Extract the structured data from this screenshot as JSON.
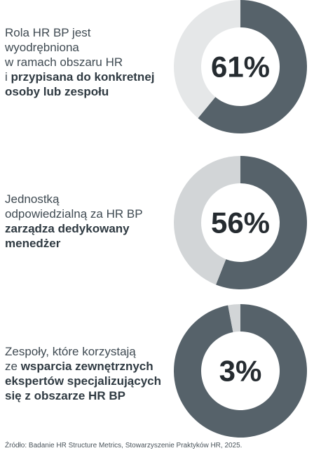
{
  "chart_data": [
    {
      "type": "pie",
      "values": [
        61,
        39
      ],
      "value_label": "61%",
      "label_lines": [
        [
          {
            "text": "Rola HR BP jest",
            "bold": false
          }
        ],
        [
          {
            "text": "wyodrębniona",
            "bold": false
          }
        ],
        [
          {
            "text": "w ramach obszaru HR",
            "bold": false
          }
        ],
        [
          {
            "text": "i ",
            "bold": false
          },
          {
            "text": "przypisana do konkretnej",
            "bold": true
          }
        ],
        [
          {
            "text": "osoby lub zespołu",
            "bold": true
          }
        ]
      ]
    },
    {
      "type": "pie",
      "values": [
        56,
        44
      ],
      "value_label": "56%",
      "label_lines": [
        [
          {
            "text": "Jednostką",
            "bold": false
          }
        ],
        [
          {
            "text": "odpowiedzialną za HR BP",
            "bold": false
          }
        ],
        [
          {
            "text": "zarządza dedykowany",
            "bold": true
          }
        ],
        [
          {
            "text": "menedżer",
            "bold": true
          }
        ]
      ]
    },
    {
      "type": "pie",
      "values": [
        97,
        3
      ],
      "value_label": "3%",
      "label_lines": [
        [
          {
            "text": "Zespoły, które korzystają",
            "bold": false
          }
        ],
        [
          {
            "text": "ze ",
            "bold": false
          },
          {
            "text": "wsparcia zewnętrznych",
            "bold": true
          }
        ],
        [
          {
            "text": "ekspertów specjalizujących",
            "bold": true
          }
        ],
        [
          {
            "text": "się z obszarze HR BP",
            "bold": true
          }
        ]
      ]
    }
  ],
  "colors": {
    "highlight": "#56626a",
    "remainder": "#e5e7e8",
    "remainder_mid": "#d2d5d7",
    "text": "#3f4a52",
    "number": "#252b30"
  },
  "source": "Źródło: Badanie HR Structure Metrics, Stowarzyszenie Praktyków HR, 2025."
}
